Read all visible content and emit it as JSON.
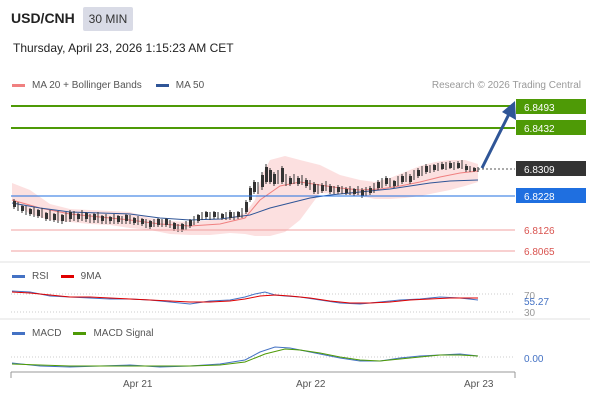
{
  "header": {
    "symbol": "USD/CNH",
    "timeframe": "30 MIN",
    "datetime": "Thursday, April 23, 2026 1:15:23 AM CET"
  },
  "legend": {
    "ma20": {
      "label": "MA 20 + Bollinger Bands",
      "color": "#f08080"
    },
    "ma50": {
      "label": "MA 50",
      "color": "#2f5597"
    },
    "credit": "Research © 2026 Trading Central"
  },
  "levels": {
    "target2": {
      "value": "6.8493",
      "color": "#4e9a06"
    },
    "target1": {
      "value": "6.8432",
      "color": "#4e9a06"
    },
    "last": {
      "value": "6.8309",
      "color": "#333333"
    },
    "pivot": {
      "value": "6.8228",
      "color": "#1f6fe0"
    },
    "support1": {
      "value": "6.8126",
      "color": "#d9534f"
    },
    "support2": {
      "value": "6.8065",
      "color": "#d9534f"
    }
  },
  "rsi": {
    "legend_rsi": "RSI",
    "legend_ma": "9MA",
    "rsi_color": "#4472c4",
    "ma_color": "#e00000",
    "tick_70": "70",
    "value": "55.27",
    "tick_30": "30"
  },
  "macd": {
    "legend_macd": "MACD",
    "legend_signal": "MACD Signal",
    "macd_color": "#4472c4",
    "signal_color": "#4e9a06",
    "value": "0.00"
  },
  "xaxis": {
    "labels": [
      "Apr 21",
      "Apr 22",
      "Apr 23"
    ]
  }
}
